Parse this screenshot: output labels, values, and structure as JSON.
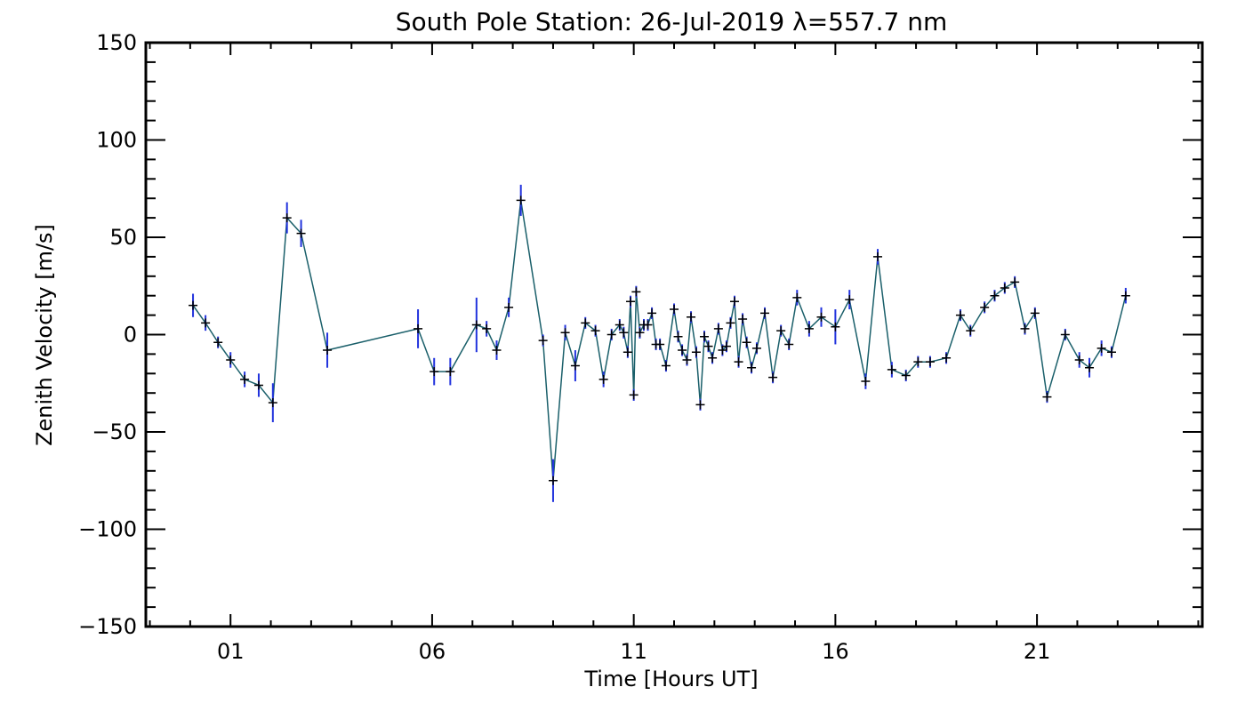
{
  "chart_data": {
    "type": "line",
    "title": "South Pole Station: 26-Jul-2019 λ=557.7 nm",
    "xlabel": "Time [Hours UT]",
    "ylabel": "Zenith Velocity [m/s]",
    "xlim": [
      -1.1,
      25.1
    ],
    "ylim": [
      -150,
      150
    ],
    "xticks": [
      {
        "value": 1,
        "label": "01"
      },
      {
        "value": 6,
        "label": "06"
      },
      {
        "value": 11,
        "label": "11"
      },
      {
        "value": 16,
        "label": "16"
      },
      {
        "value": 21,
        "label": "21"
      }
    ],
    "yticks": [
      {
        "value": -150,
        "label": "−150"
      },
      {
        "value": -100,
        "label": "−100"
      },
      {
        "value": -50,
        "label": "−50"
      },
      {
        "value": 0,
        "label": "0"
      },
      {
        "value": 50,
        "label": "50"
      },
      {
        "value": 100,
        "label": "100"
      },
      {
        "value": 150,
        "label": "150"
      }
    ],
    "colors": {
      "line": "#1a5f6a",
      "errorbar": "#2233dd",
      "marker": "#000000",
      "axis": "#000000"
    },
    "series": [
      {
        "name": "Zenith Velocity",
        "x": [
          0.07,
          0.38,
          0.69,
          1.0,
          1.35,
          1.7,
          2.05,
          2.4,
          2.75,
          3.4,
          5.65,
          6.05,
          6.45,
          7.1,
          7.35,
          7.6,
          7.9,
          8.2,
          8.75,
          9.0,
          9.3,
          9.55,
          9.8,
          10.05,
          10.25,
          10.45,
          10.65,
          10.75,
          10.85,
          10.92,
          11.0,
          11.06,
          11.15,
          11.25,
          11.35,
          11.45,
          11.55,
          11.65,
          11.8,
          12.0,
          12.1,
          12.2,
          12.32,
          12.42,
          12.55,
          12.65,
          12.75,
          12.85,
          12.95,
          13.1,
          13.2,
          13.3,
          13.4,
          13.5,
          13.6,
          13.7,
          13.8,
          13.92,
          14.05,
          14.25,
          14.45,
          14.65,
          14.85,
          15.05,
          15.35,
          15.65,
          16.0,
          16.35,
          16.75,
          17.05,
          17.4,
          17.75,
          18.05,
          18.35,
          18.75,
          19.1,
          19.35,
          19.7,
          19.95,
          20.2,
          20.45,
          20.7,
          20.95,
          21.25,
          21.7,
          22.05,
          22.3,
          22.6,
          22.85,
          23.2
        ],
        "y": [
          15,
          6,
          -4,
          -13,
          -23,
          -26,
          -35,
          60,
          52,
          -8,
          3,
          -19,
          -19,
          5,
          3,
          -8,
          14,
          69,
          -3,
          -75,
          1,
          -16,
          6,
          2,
          -23,
          0,
          5,
          1,
          -9,
          17,
          -31,
          22,
          1,
          5,
          5,
          11,
          -5,
          -5,
          -16,
          13,
          -1,
          -8,
          -13,
          9,
          -9,
          -36,
          -1,
          -6,
          -12,
          3,
          -8,
          -6,
          6,
          17,
          -14,
          8,
          -4,
          -17,
          -7,
          11,
          -22,
          2,
          -5,
          19,
          3,
          9,
          4,
          18,
          -24,
          40,
          -18,
          -21,
          -14,
          -14,
          -12,
          10,
          2,
          14,
          20,
          24,
          27,
          3,
          11,
          -32,
          0,
          -13,
          -17,
          -7,
          -9,
          20
        ],
        "err": [
          6,
          4,
          3,
          4,
          4,
          6,
          10,
          8,
          7,
          9,
          10,
          7,
          7,
          14,
          4,
          5,
          5,
          8,
          3,
          11,
          4,
          8,
          3,
          3,
          4,
          3,
          3,
          3,
          3,
          3,
          3,
          3,
          3,
          3,
          3,
          3,
          3,
          3,
          3,
          3,
          3,
          3,
          3,
          3,
          3,
          3,
          3,
          3,
          3,
          3,
          3,
          3,
          3,
          3,
          3,
          3,
          3,
          3,
          3,
          3,
          3,
          3,
          3,
          4,
          4,
          5,
          9,
          5,
          4,
          4,
          4,
          3,
          3,
          3,
          3,
          3,
          3,
          3,
          3,
          3,
          3,
          3,
          3,
          3,
          3,
          4,
          5,
          4,
          3,
          4
        ]
      }
    ]
  }
}
